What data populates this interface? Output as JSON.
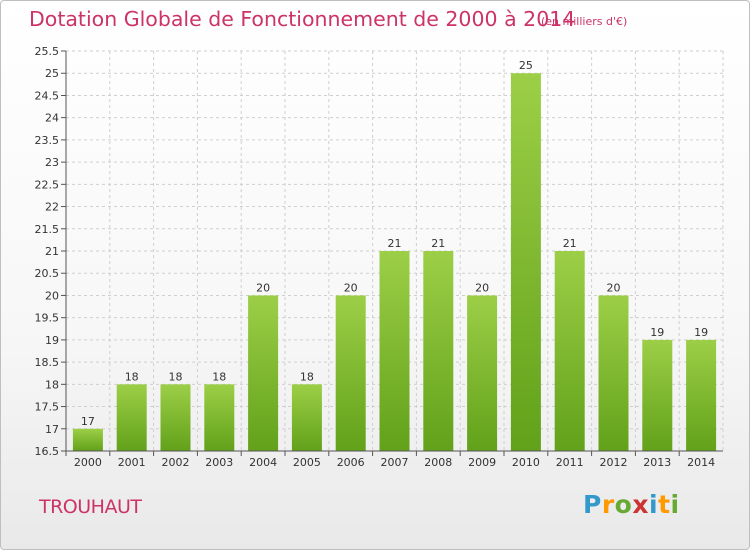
{
  "header": {
    "title": "Dotation Globale de Fonctionnement de 2000 à 2014",
    "subtitle": "(en milliers d'€)"
  },
  "footer": {
    "place": "TROUHAUT",
    "logo": {
      "letters": [
        "P",
        "r",
        "o",
        "x",
        "i",
        "t",
        "i"
      ],
      "colors": [
        "#3399cc",
        "#ff9900",
        "#66aa33",
        "#cc3333",
        "#3399cc",
        "#ff9900",
        "#66aa33"
      ]
    }
  },
  "colors": {
    "title": "#cc3366",
    "bar_light": "#9ccf47",
    "bar_dark": "#62a11a",
    "grid": "#cfcfcf",
    "axis": "#555555"
  },
  "chart_data": {
    "type": "bar",
    "title": "Dotation Globale de Fonctionnement de 2000 à 2014",
    "subtitle": "(en milliers d'€)",
    "categories": [
      "2000",
      "2001",
      "2002",
      "2003",
      "2004",
      "2005",
      "2006",
      "2007",
      "2008",
      "2009",
      "2010",
      "2011",
      "2012",
      "2013",
      "2014"
    ],
    "values": [
      17,
      18,
      18,
      18,
      20,
      18,
      20,
      21,
      21,
      20,
      25,
      21,
      20,
      19,
      19
    ],
    "data_labels": [
      "17",
      "18",
      "18",
      "18",
      "20",
      "18",
      "20",
      "21",
      "21",
      "20",
      "25",
      "21",
      "20",
      "19",
      "19"
    ],
    "ylim": [
      16.5,
      25.5
    ],
    "yticks": [
      16.5,
      17,
      17.5,
      18,
      18.5,
      19,
      19.5,
      20,
      20.5,
      21,
      21.5,
      22,
      22.5,
      23,
      23.5,
      24,
      24.5,
      25,
      25.5
    ],
    "ytick_labels": [
      "16.5",
      "17",
      "17.5",
      "18",
      "18.5",
      "19",
      "19.5",
      "20",
      "20.5",
      "21",
      "21.5",
      "22",
      "22.5",
      "23",
      "23.5",
      "24",
      "24.5",
      "25",
      "25.5"
    ],
    "grid": true,
    "legend": "none"
  }
}
